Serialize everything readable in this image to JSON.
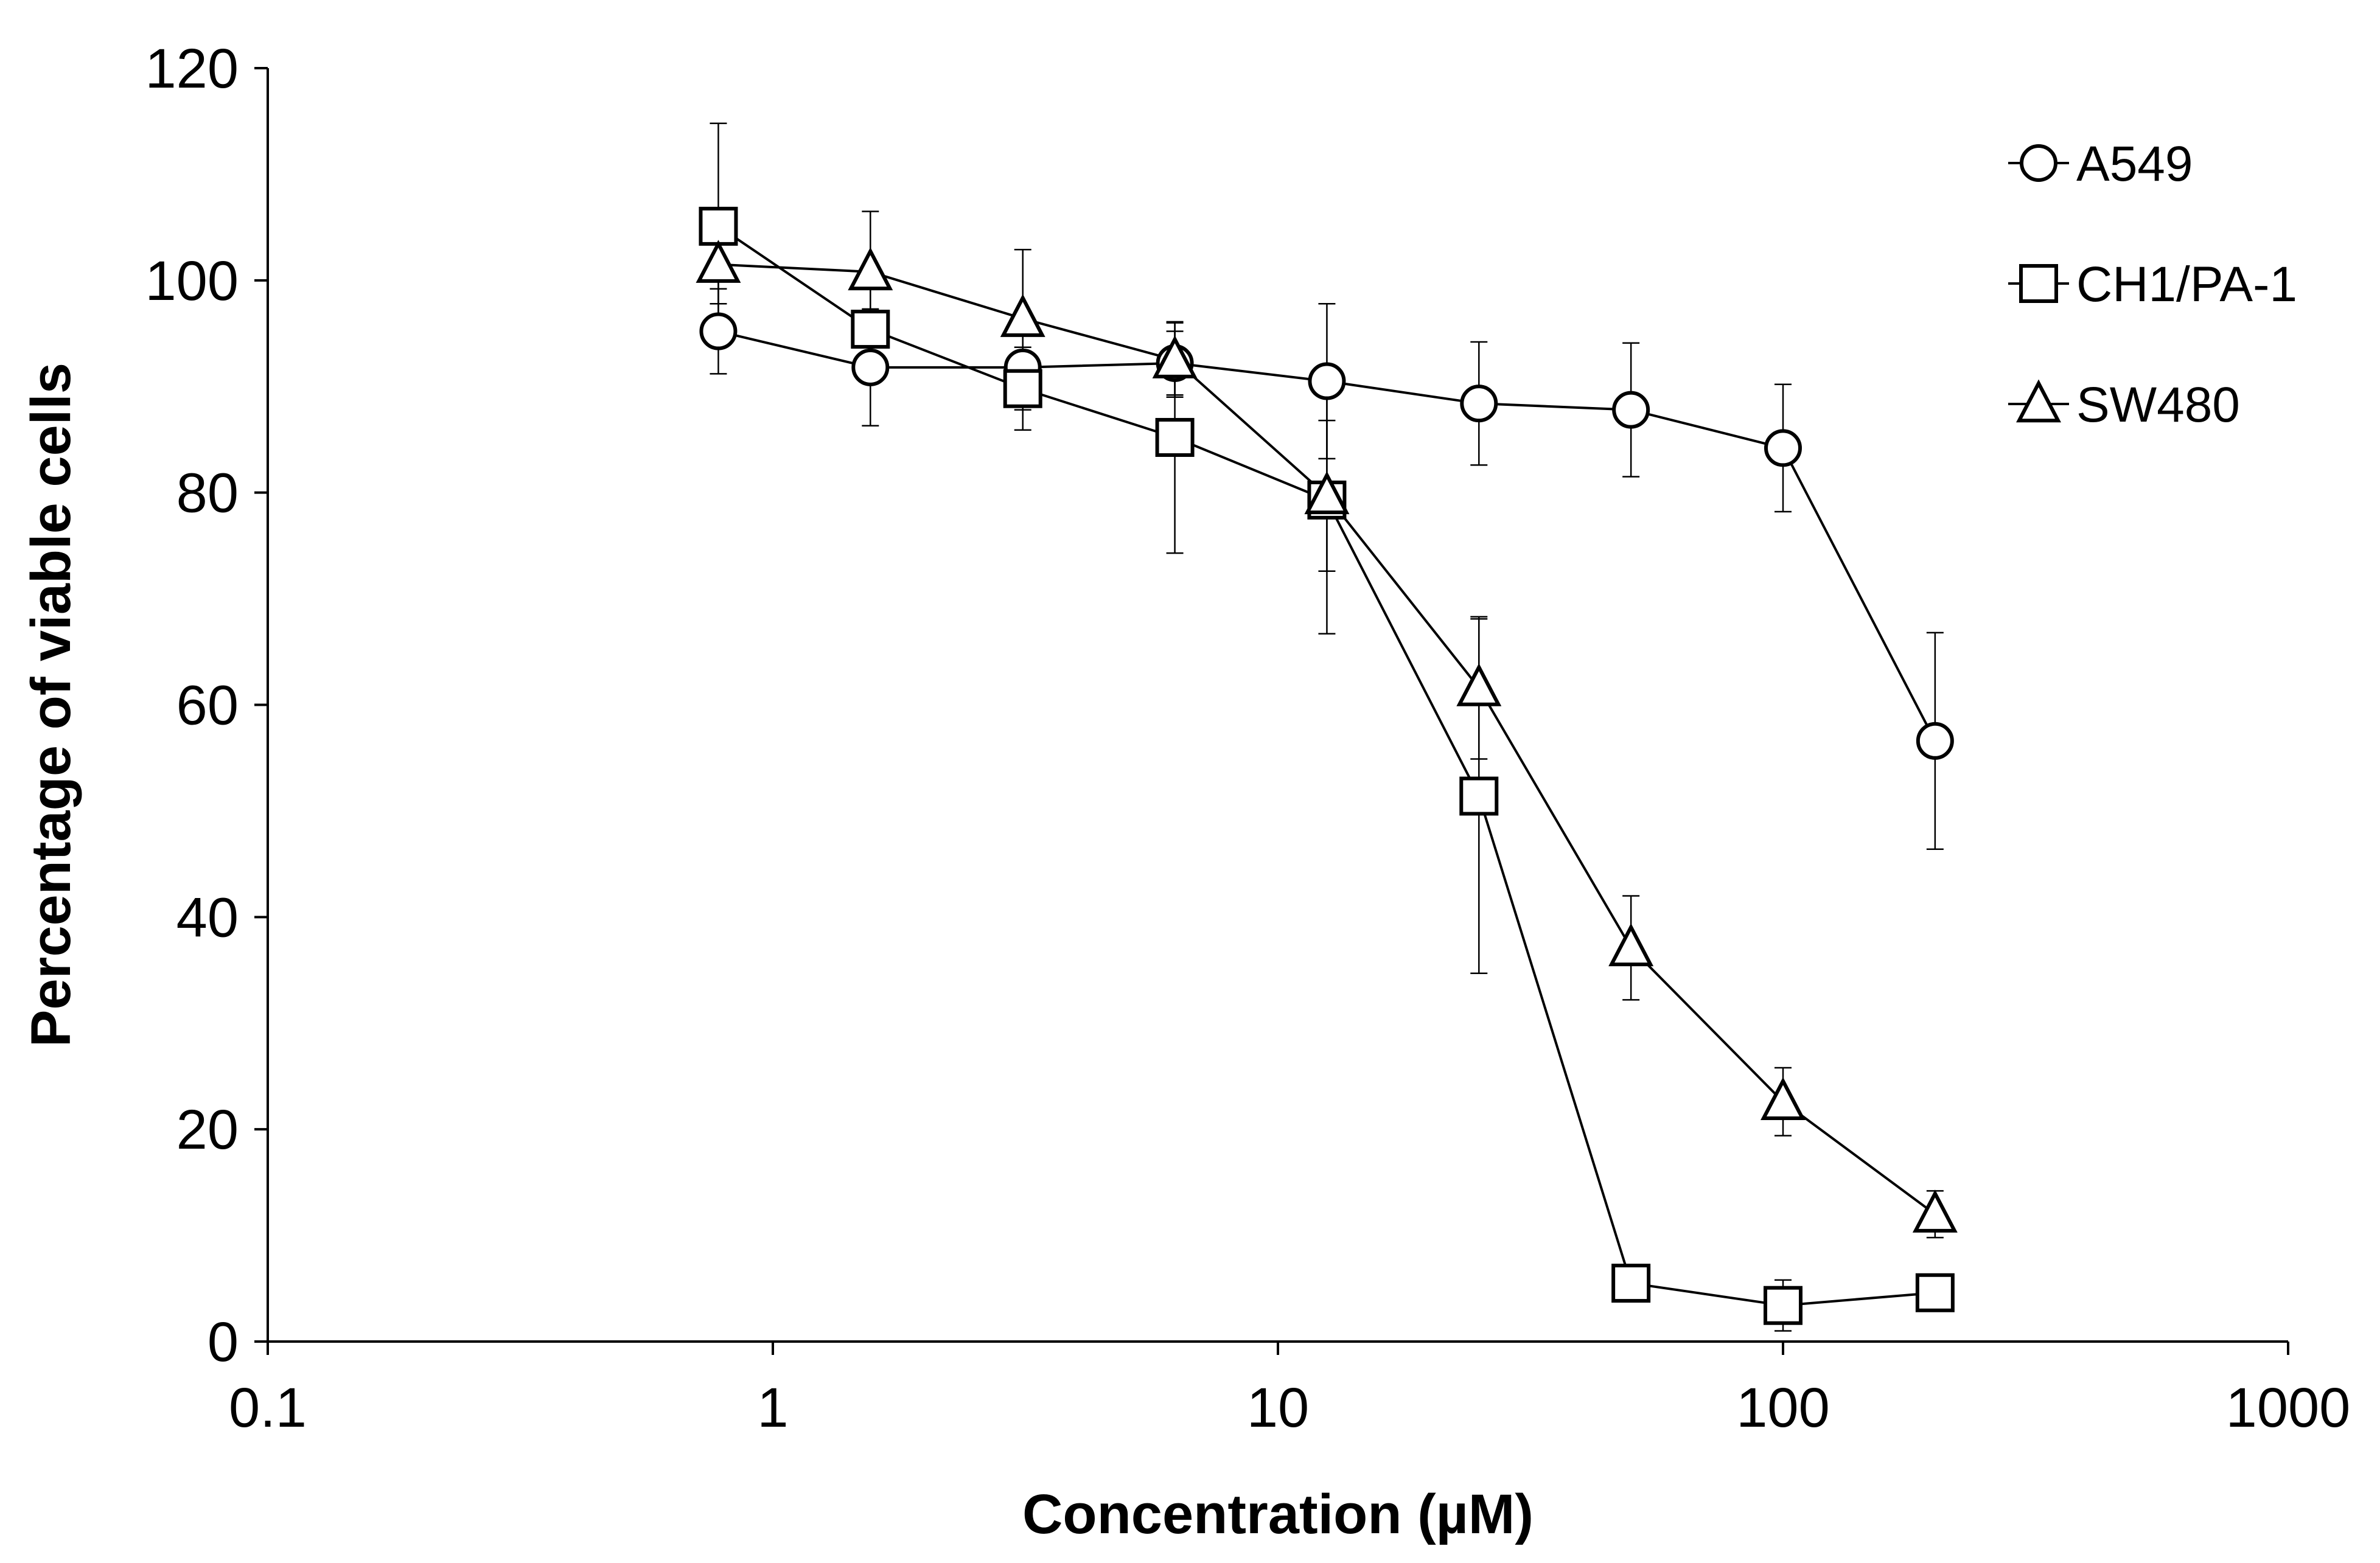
{
  "chart_data": {
    "type": "line",
    "xscale": "log",
    "title": "",
    "xlabel": "Concentration (µM)",
    "ylabel": "Percentage of viable cells",
    "xlim": [
      0.1,
      1000
    ],
    "ylim": [
      0,
      120
    ],
    "xticks": [
      0.1,
      1,
      10,
      100,
      1000
    ],
    "xtick_labels": [
      "0.1",
      "1",
      "10",
      "100",
      "1000"
    ],
    "yticks": [
      0,
      20,
      40,
      60,
      80,
      100,
      120
    ],
    "ytick_labels": [
      "0",
      "20",
      "40",
      "60",
      "80",
      "100",
      "120"
    ],
    "grid": false,
    "legend_position": "top-right",
    "x": [
      0.78,
      1.56,
      3.125,
      6.25,
      12.5,
      25,
      50,
      100,
      200
    ],
    "series": [
      {
        "name": "A549",
        "marker": "circle",
        "values": [
          95.2,
          91.8,
          91.8,
          92.2,
          90.5,
          88.4,
          87.8,
          84.2,
          56.6
        ],
        "errors": [
          4,
          5.5,
          4,
          3,
          7.3,
          5.8,
          6.3,
          6,
          10.2
        ]
      },
      {
        "name": "CH1/PA-1",
        "marker": "square",
        "values": [
          105.1,
          95.4,
          89.8,
          85.2,
          79.3,
          51.4,
          5.5,
          3.4,
          4.6
        ],
        "errors": [
          9.7,
          4,
          3.9,
          10.9,
          12.6,
          16.7,
          1,
          2.4,
          1
        ]
      },
      {
        "name": "SW480",
        "marker": "triangle",
        "values": [
          101.5,
          100.8,
          96.4,
          92.5,
          79.7,
          61.6,
          37.1,
          22.6,
          12
        ],
        "errors": [
          3.7,
          5.7,
          6.5,
          3.5,
          7.1,
          6.7,
          4.9,
          3.2,
          2.2
        ]
      }
    ]
  }
}
